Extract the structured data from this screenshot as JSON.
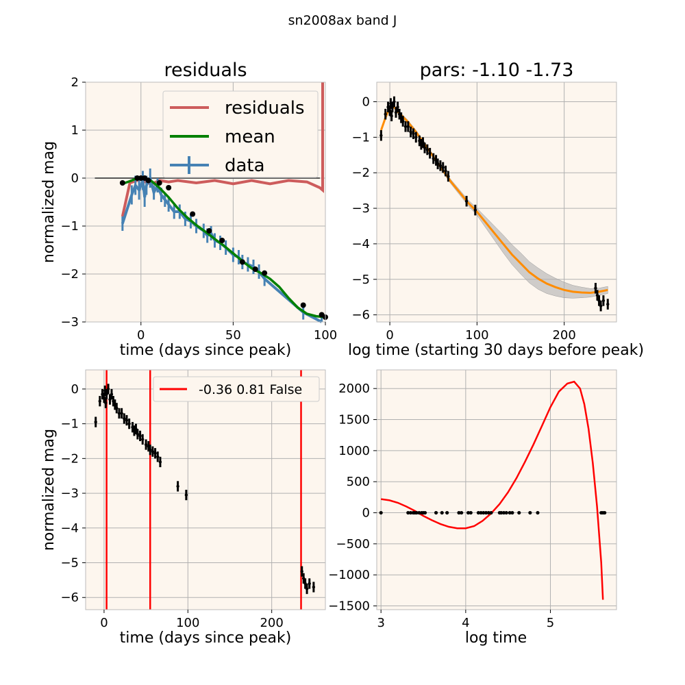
{
  "figure": {
    "suptitle": "sn2008ax band J"
  },
  "chart_data": [
    {
      "id": "residuals",
      "type": "line",
      "title": "residuals",
      "xlabel": "time (days since peak)",
      "ylabel": "normalized mag",
      "xlim": [
        -30,
        100
      ],
      "ylim": [
        -3,
        2
      ],
      "xticks": [
        0,
        50,
        100
      ],
      "yticks": [
        -3,
        -2,
        -1,
        0,
        1,
        2
      ],
      "grid": true,
      "legend": "upper-right",
      "colors": {
        "residuals": "#cd5c5c",
        "mean": "#008000",
        "data": "#4682b4",
        "points": "#000000",
        "zero": "#555555"
      },
      "series": [
        {
          "name": "residuals",
          "x": [
            -10,
            -6,
            -2,
            0,
            3,
            6,
            10,
            15,
            20,
            30,
            40,
            50,
            60,
            70,
            80,
            90,
            97,
            98.5,
            98.5
          ],
          "y": [
            -0.8,
            -0.1,
            -0.05,
            0.02,
            -0.1,
            -0.12,
            -0.05,
            -0.08,
            -0.05,
            -0.1,
            -0.05,
            -0.12,
            -0.05,
            -0.12,
            -0.05,
            -0.08,
            -0.2,
            -0.25,
            2.1
          ]
        },
        {
          "name": "mean",
          "x": [
            -10,
            -5,
            -2,
            0,
            3,
            6,
            10,
            15,
            20,
            25,
            30,
            35,
            40,
            45,
            50,
            55,
            60,
            65,
            70,
            75,
            80,
            85,
            90,
            95,
            100
          ],
          "y": [
            -0.12,
            -0.05,
            0,
            0,
            -0.02,
            -0.07,
            -0.2,
            -0.4,
            -0.63,
            -0.82,
            -0.98,
            -1.12,
            -1.27,
            -1.41,
            -1.57,
            -1.73,
            -1.88,
            -1.98,
            -2.1,
            -2.27,
            -2.5,
            -2.7,
            -2.83,
            -2.88,
            -2.9
          ]
        },
        {
          "name": "data",
          "x": [
            -10,
            -5,
            -3,
            -1,
            1,
            2,
            3,
            5,
            7,
            9,
            11,
            13,
            15,
            18,
            21,
            24,
            27,
            30,
            34,
            36,
            38,
            40,
            43,
            46,
            50,
            53,
            55,
            58,
            61,
            64,
            67,
            88,
            98
          ],
          "y": [
            -0.95,
            -0.35,
            -0.15,
            -0.25,
            -0.05,
            -0.4,
            -0.15,
            0.0,
            -0.3,
            -0.15,
            -0.35,
            -0.45,
            -0.55,
            -0.7,
            -0.7,
            -0.85,
            -0.9,
            -1.0,
            -1.1,
            -1.2,
            -1.15,
            -1.3,
            -1.35,
            -1.45,
            -1.6,
            -1.65,
            -1.75,
            -1.8,
            -1.85,
            -1.95,
            -2.1,
            -2.8,
            -3.05
          ],
          "err": [
            0.15,
            0.2,
            0.2,
            0.2,
            0.2,
            0.2,
            0.2,
            0.2,
            0.15,
            0.15,
            0.15,
            0.15,
            0.15,
            0.15,
            0.15,
            0.15,
            0.15,
            0.15,
            0.15,
            0.15,
            0.15,
            0.15,
            0.15,
            0.15,
            0.15,
            0.15,
            0.15,
            0.15,
            0.15,
            0.15,
            0.15,
            0.15,
            0.15
          ]
        },
        {
          "name": "points",
          "x": [
            -10,
            -2,
            0,
            2,
            4,
            10,
            15,
            28,
            37,
            44,
            55,
            62,
            67,
            88,
            98,
            100
          ],
          "y": [
            -0.1,
            0.0,
            0.0,
            0.0,
            -0.05,
            -0.1,
            -0.2,
            -0.75,
            -1.1,
            -1.3,
            -1.75,
            -1.9,
            -1.98,
            -2.65,
            -2.85,
            -2.9
          ]
        }
      ]
    },
    {
      "id": "fit",
      "type": "line",
      "title": "pars: -1.10 -1.73",
      "xlabel": "log time (starting 30 days before peak)",
      "ylabel": "",
      "xlim": [
        -15,
        260
      ],
      "ylim": [
        -6.2,
        0.55
      ],
      "xticks": [
        0,
        100,
        200
      ],
      "yticks": [
        -6,
        -5,
        -4,
        -3,
        -2,
        -1,
        0
      ],
      "grid": true,
      "colors": {
        "fit": "#ff8c00",
        "band": "#b0b0b0",
        "points": "#000000"
      },
      "fit_x": [
        -10,
        -5,
        0,
        5,
        10,
        20,
        30,
        40,
        50,
        60,
        70,
        80,
        90,
        100,
        110,
        120,
        130,
        140,
        150,
        160,
        170,
        180,
        190,
        200,
        210,
        220,
        230,
        240,
        250
      ],
      "fit_y": [
        -0.8,
        -0.45,
        -0.15,
        -0.15,
        -0.3,
        -0.55,
        -0.85,
        -1.2,
        -1.55,
        -1.9,
        -2.25,
        -2.55,
        -2.85,
        -3.1,
        -3.4,
        -3.7,
        -4.0,
        -4.3,
        -4.55,
        -4.8,
        -4.98,
        -5.12,
        -5.22,
        -5.3,
        -5.35,
        -5.37,
        -5.38,
        -5.35,
        -5.3
      ],
      "band_half": [
        0.05,
        0.05,
        0.05,
        0.05,
        0.05,
        0.05,
        0.05,
        0.05,
        0.05,
        0.06,
        0.06,
        0.07,
        0.08,
        0.1,
        0.15,
        0.2,
        0.25,
        0.28,
        0.3,
        0.3,
        0.3,
        0.28,
        0.25,
        0.22,
        0.18,
        0.15,
        0.12,
        0.1,
        0.1
      ],
      "data_x": [
        -10,
        -5,
        -2,
        0,
        1,
        2,
        3,
        5,
        7,
        9,
        11,
        13,
        15,
        18,
        21,
        24,
        27,
        30,
        34,
        36,
        38,
        40,
        43,
        46,
        50,
        53,
        55,
        58,
        61,
        64,
        67,
        88,
        98,
        236,
        238,
        240,
        242,
        245,
        250
      ],
      "data_y": [
        -0.95,
        -0.35,
        -0.15,
        -0.25,
        -0.05,
        -0.4,
        -0.15,
        0.0,
        -0.3,
        -0.15,
        -0.35,
        -0.45,
        -0.55,
        -0.7,
        -0.7,
        -0.85,
        -0.9,
        -1.0,
        -1.1,
        -1.2,
        -1.15,
        -1.3,
        -1.35,
        -1.45,
        -1.6,
        -1.65,
        -1.75,
        -1.8,
        -1.85,
        -1.95,
        -2.1,
        -2.8,
        -3.05,
        -5.25,
        -5.45,
        -5.6,
        -5.75,
        -5.6,
        -5.7
      ],
      "err": 0.15
    },
    {
      "id": "lightcurve",
      "type": "scatter",
      "title": "",
      "xlabel": "time (days since peak)",
      "ylabel": "normalized mag",
      "xlim": [
        -22,
        264
      ],
      "ylim": [
        -6.35,
        0.55
      ],
      "xticks": [
        0,
        100,
        200
      ],
      "yticks": [
        -6,
        -5,
        -4,
        -3,
        -2,
        -1,
        0
      ],
      "grid": true,
      "legend": "upper-right",
      "colors": {
        "vlines": "#ff0000",
        "points": "#000000"
      },
      "legend_label": "-0.36 0.81 False",
      "vlines": [
        3,
        55,
        235
      ],
      "data_x": [
        -10,
        -5,
        -2,
        0,
        1,
        2,
        3,
        5,
        7,
        9,
        11,
        13,
        15,
        18,
        21,
        24,
        27,
        30,
        34,
        36,
        38,
        40,
        43,
        46,
        50,
        53,
        55,
        58,
        61,
        64,
        67,
        88,
        98,
        236,
        238,
        240,
        242,
        245,
        250
      ],
      "data_y": [
        -0.95,
        -0.35,
        -0.15,
        -0.25,
        -0.05,
        -0.4,
        -0.15,
        0.0,
        -0.3,
        -0.15,
        -0.35,
        -0.45,
        -0.55,
        -0.7,
        -0.7,
        -0.85,
        -0.9,
        -1.0,
        -1.1,
        -1.2,
        -1.15,
        -1.3,
        -1.35,
        -1.45,
        -1.6,
        -1.65,
        -1.75,
        -1.8,
        -1.85,
        -1.95,
        -2.1,
        -2.8,
        -3.05,
        -5.25,
        -5.45,
        -5.6,
        -5.75,
        -5.6,
        -5.7
      ],
      "err": 0.15
    },
    {
      "id": "derivative",
      "type": "line",
      "title": "",
      "xlabel": "log time",
      "ylabel": "",
      "xlim": [
        2.95,
        5.78
      ],
      "ylim": [
        -1560,
        2300
      ],
      "xticks": [
        3,
        4,
        5
      ],
      "yticks": [
        -1500,
        -1000,
        -500,
        0,
        500,
        1000,
        1500,
        2000
      ],
      "grid": true,
      "colors": {
        "curve": "#ff0000",
        "points": "#000000"
      },
      "curve_x": [
        3.0,
        3.1,
        3.2,
        3.3,
        3.4,
        3.5,
        3.6,
        3.7,
        3.8,
        3.9,
        4.0,
        4.1,
        4.2,
        4.3,
        4.4,
        4.5,
        4.6,
        4.7,
        4.8,
        4.9,
        5.0,
        5.1,
        5.2,
        5.28,
        5.35,
        5.4,
        5.45,
        5.5,
        5.55,
        5.6,
        5.62
      ],
      "curve_y": [
        220,
        200,
        160,
        100,
        30,
        -50,
        -120,
        -180,
        -225,
        -250,
        -250,
        -215,
        -130,
        -10,
        140,
        330,
        560,
        820,
        1100,
        1400,
        1700,
        1950,
        2080,
        2110,
        2000,
        1750,
        1350,
        800,
        100,
        -800,
        -1400
      ],
      "points_x": [
        3.0,
        3.32,
        3.35,
        3.38,
        3.4,
        3.42,
        3.45,
        3.48,
        3.5,
        3.52,
        3.65,
        3.72,
        3.78,
        3.92,
        3.95,
        4.03,
        4.06,
        4.15,
        4.18,
        4.21,
        4.24,
        4.27,
        4.3,
        4.4,
        4.42,
        4.45,
        4.48,
        4.52,
        4.55,
        4.63,
        4.76,
        4.85,
        5.6,
        5.62,
        5.64
      ],
      "points_y": [
        0,
        0,
        0,
        0,
        0,
        0,
        0,
        0,
        0,
        0,
        0,
        0,
        0,
        0,
        0,
        0,
        0,
        0,
        0,
        0,
        0,
        0,
        0,
        0,
        0,
        0,
        0,
        0,
        0,
        0,
        0,
        0,
        0,
        0,
        0
      ]
    }
  ]
}
